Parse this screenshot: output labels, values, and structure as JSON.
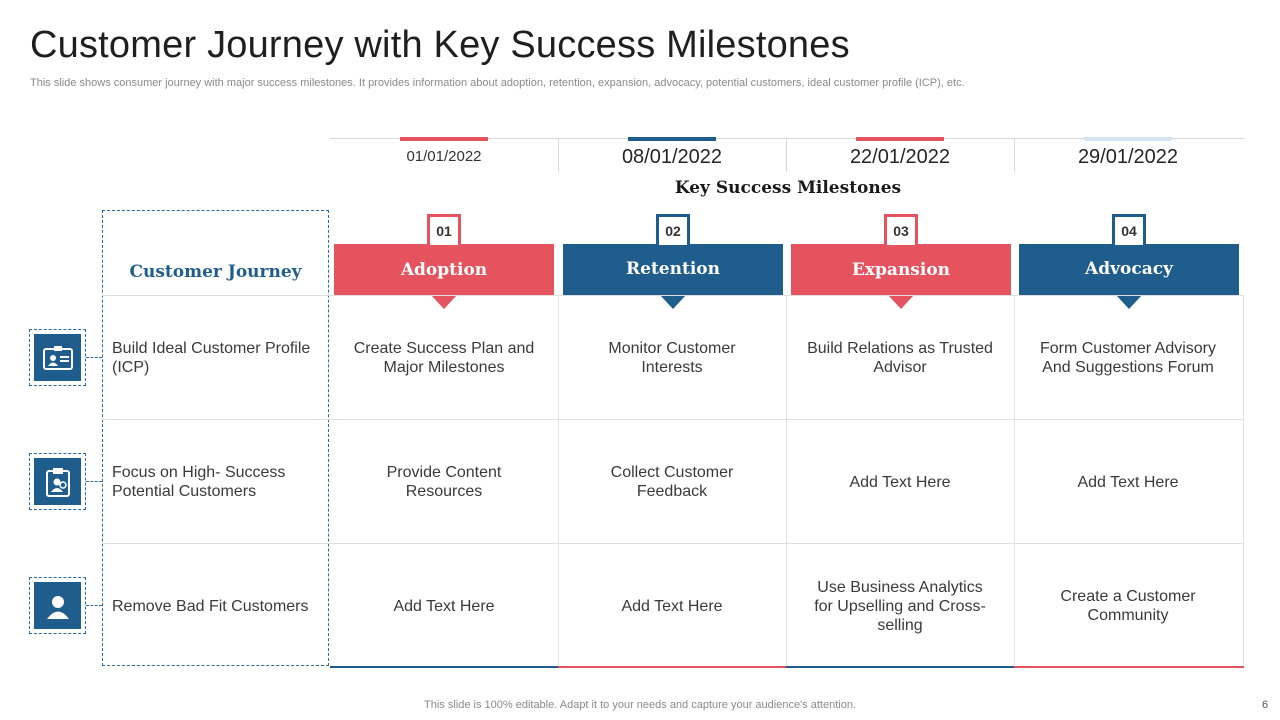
{
  "slide": {
    "title": "Customer Journey with Key Success Milestones",
    "subtitle": "This slide shows consumer journey with major success milestones. It provides information about adoption, retention, expansion, advocacy, potential customers, ideal customer profile (ICP), etc.",
    "footer": "This slide is 100% editable. Adapt it to your needs and capture your audience's attention.",
    "page_number": "6"
  },
  "timeline": {
    "dates": [
      "01/01/2022",
      "08/01/2022",
      "22/01/2022",
      "29/01/2022"
    ],
    "heading": "Key Success Milestones"
  },
  "journey": {
    "title": "Customer Journey"
  },
  "milestones": [
    {
      "number": "01",
      "label": "Adoption"
    },
    {
      "number": "02",
      "label": "Retention"
    },
    {
      "number": "03",
      "label": "Expansion"
    },
    {
      "number": "04",
      "label": "Advocacy"
    }
  ],
  "rows": [
    {
      "label": "Build Ideal Customer Profile (ICP)",
      "icon": "id-card-icon",
      "cells": [
        "Create Success Plan and Major Milestones",
        "Monitor Customer Interests",
        "Build Relations as Trusted Advisor",
        "Form Customer Advisory And Suggestions Forum"
      ]
    },
    {
      "label": "Focus on High- Success Potential Customers",
      "icon": "clipboard-user-icon",
      "cells": [
        "Provide Content Resources",
        "Collect Customer Feedback",
        "Add Text Here",
        "Add Text Here"
      ]
    },
    {
      "label": "Remove Bad Fit Customers",
      "icon": "user-icon",
      "cells": [
        "Add Text Here",
        "Add Text Here",
        "Use Business Analytics for Upselling and Cross-selling",
        "Create a Customer Community"
      ]
    }
  ],
  "colors": {
    "red": "#e5535f",
    "blue": "#1f5d8c",
    "light_blue": "#d6e6f4"
  }
}
